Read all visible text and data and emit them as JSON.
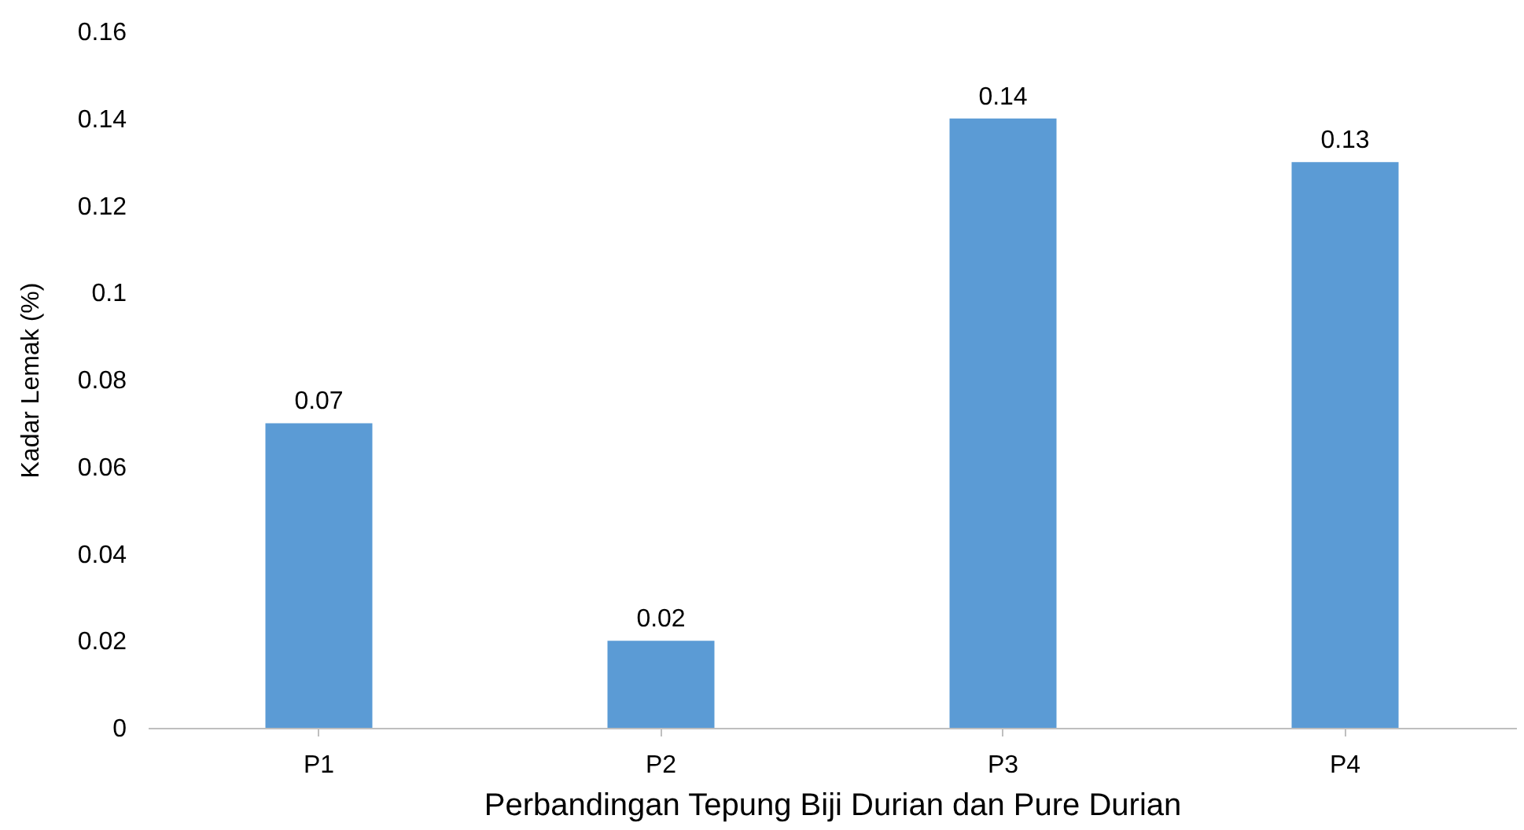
{
  "chart_data": {
    "type": "bar",
    "xlabel": "Perbandingan Tepung Biji Durian dan Pure Durian",
    "ylabel": "Kadar Lemak (%)",
    "categories": [
      "P1",
      "P2",
      "P3",
      "P4"
    ],
    "values": [
      0.07,
      0.02,
      0.14,
      0.13
    ],
    "color": "#5b9bd5",
    "ylim": [
      0,
      0.16
    ],
    "yticks": [
      0,
      0.02,
      0.04,
      0.06,
      0.08,
      0.1,
      0.12,
      0.14,
      0.16
    ],
    "grid": false,
    "data_labels": true
  }
}
